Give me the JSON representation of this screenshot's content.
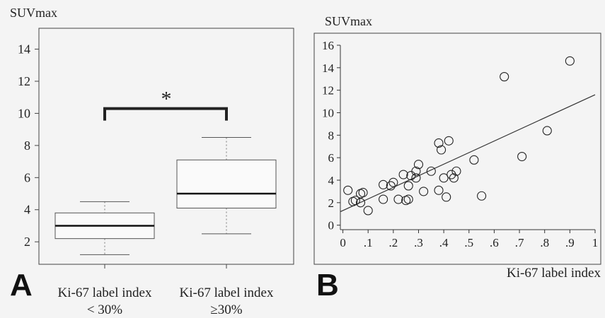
{
  "panel_a": {
    "letter": "A",
    "ylabel": "SUVmax",
    "significance": "*",
    "yticks": [
      2,
      4,
      6,
      8,
      10,
      12,
      14
    ],
    "groups": [
      {
        "label_line1": "Ki-67 label index",
        "label_line2": "< 30%"
      },
      {
        "label_line1": "Ki-67 label index",
        "label_line2": "≥30%"
      }
    ]
  },
  "panel_b": {
    "letter": "B",
    "ylabel": "SUVmax",
    "xlabel": "Ki-67 label index",
    "yticks": [
      "0",
      "2",
      "4",
      "6",
      "8",
      "10",
      "12",
      "14",
      "16"
    ],
    "xticks": [
      "0",
      ".1",
      ".2",
      ".3",
      ".4",
      ".5",
      ".6",
      ".7",
      ".8",
      ".9",
      "1"
    ]
  },
  "chart_data": [
    {
      "type": "box",
      "ylabel": "SUVmax",
      "ylim": [
        0.6,
        15.3
      ],
      "categories": [
        "Ki-67 label index < 30%",
        "Ki-67 label index ≥30%"
      ],
      "boxes": [
        {
          "whisker_low": 1.2,
          "q1": 2.2,
          "median": 3.0,
          "q3": 3.8,
          "whisker_high": 4.5
        },
        {
          "whisker_low": 2.5,
          "q1": 4.1,
          "median": 5.0,
          "q3": 7.1,
          "whisker_high": 8.5
        }
      ],
      "significance_bracket": {
        "between": [
          0,
          1
        ],
        "y": 10.3,
        "label": "*"
      },
      "grid": false
    },
    {
      "type": "scatter",
      "xlabel": "Ki-67 label index",
      "ylabel": "SUVmax",
      "xlim": [
        -0.01,
        1.0
      ],
      "ylim": [
        -0.4,
        16.0
      ],
      "grid": false,
      "points": [
        {
          "x": 0.02,
          "y": 3.1
        },
        {
          "x": 0.04,
          "y": 2.1
        },
        {
          "x": 0.05,
          "y": 2.2
        },
        {
          "x": 0.07,
          "y": 2.8
        },
        {
          "x": 0.07,
          "y": 2.0
        },
        {
          "x": 0.08,
          "y": 2.9
        },
        {
          "x": 0.1,
          "y": 1.3
        },
        {
          "x": 0.16,
          "y": 3.6
        },
        {
          "x": 0.16,
          "y": 2.3
        },
        {
          "x": 0.19,
          "y": 3.5
        },
        {
          "x": 0.2,
          "y": 3.8
        },
        {
          "x": 0.22,
          "y": 2.3
        },
        {
          "x": 0.24,
          "y": 4.5
        },
        {
          "x": 0.25,
          "y": 2.2
        },
        {
          "x": 0.26,
          "y": 2.3
        },
        {
          "x": 0.26,
          "y": 3.5
        },
        {
          "x": 0.27,
          "y": 4.4
        },
        {
          "x": 0.29,
          "y": 4.2
        },
        {
          "x": 0.29,
          "y": 4.8
        },
        {
          "x": 0.3,
          "y": 5.4
        },
        {
          "x": 0.32,
          "y": 3.0
        },
        {
          "x": 0.35,
          "y": 4.8
        },
        {
          "x": 0.38,
          "y": 7.3
        },
        {
          "x": 0.38,
          "y": 3.1
        },
        {
          "x": 0.39,
          "y": 6.7
        },
        {
          "x": 0.4,
          "y": 4.2
        },
        {
          "x": 0.41,
          "y": 2.5
        },
        {
          "x": 0.42,
          "y": 7.5
        },
        {
          "x": 0.43,
          "y": 4.5
        },
        {
          "x": 0.44,
          "y": 4.2
        },
        {
          "x": 0.45,
          "y": 4.8
        },
        {
          "x": 0.52,
          "y": 5.8
        },
        {
          "x": 0.55,
          "y": 2.6
        },
        {
          "x": 0.64,
          "y": 13.2
        },
        {
          "x": 0.71,
          "y": 6.1
        },
        {
          "x": 0.81,
          "y": 8.4
        },
        {
          "x": 0.9,
          "y": 14.6
        }
      ],
      "fit_line": {
        "x0": -0.01,
        "y0": 1.2,
        "x1": 1.0,
        "y1": 11.6
      }
    }
  ]
}
